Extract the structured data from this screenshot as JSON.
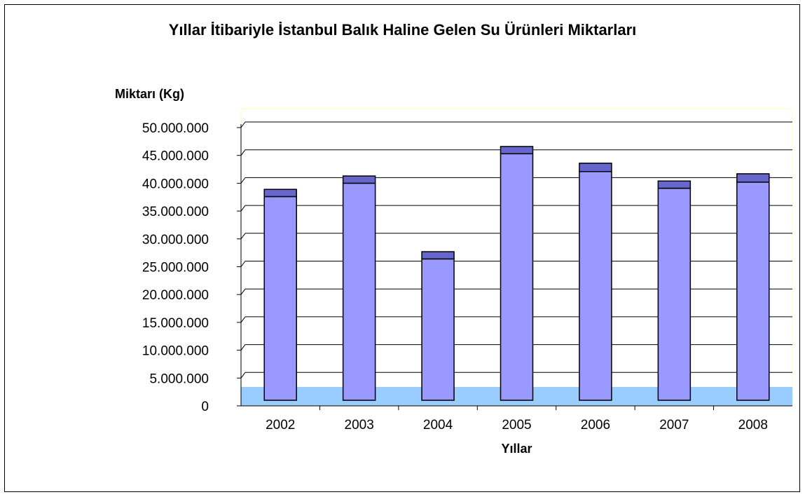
{
  "chart_data": {
    "type": "bar",
    "title": "Yıllar İtibariyle İstanbul Balık Haline Gelen Su Ürünleri Miktarları",
    "xlabel": "Yıllar",
    "ylabel": "Miktarı (Kg)",
    "categories": [
      "2002",
      "2003",
      "2004",
      "2005",
      "2006",
      "2007",
      "2008"
    ],
    "series": [
      {
        "values": [
          37600000,
          40000000,
          26400000,
          45300000,
          42100000,
          39100000,
          40200000
        ]
      },
      {
        "values": [
          1300000,
          1300000,
          1300000,
          1300000,
          1500000,
          1300000,
          1500000
        ]
      }
    ],
    "ylim": [
      0,
      50000000
    ],
    "yticks": [
      "0",
      "5.000.000",
      "10.000.000",
      "15.000.000",
      "20.000.000",
      "25.000.000",
      "30.000.000",
      "35.000.000",
      "40.000.000",
      "45.000.000",
      "50.000.000"
    ],
    "grid": true,
    "colors": {
      "base": "#9999ff",
      "top": "#6666cc",
      "floor": "#99ccff",
      "plot_border": "#ffffcc",
      "grid": "#000000"
    }
  }
}
